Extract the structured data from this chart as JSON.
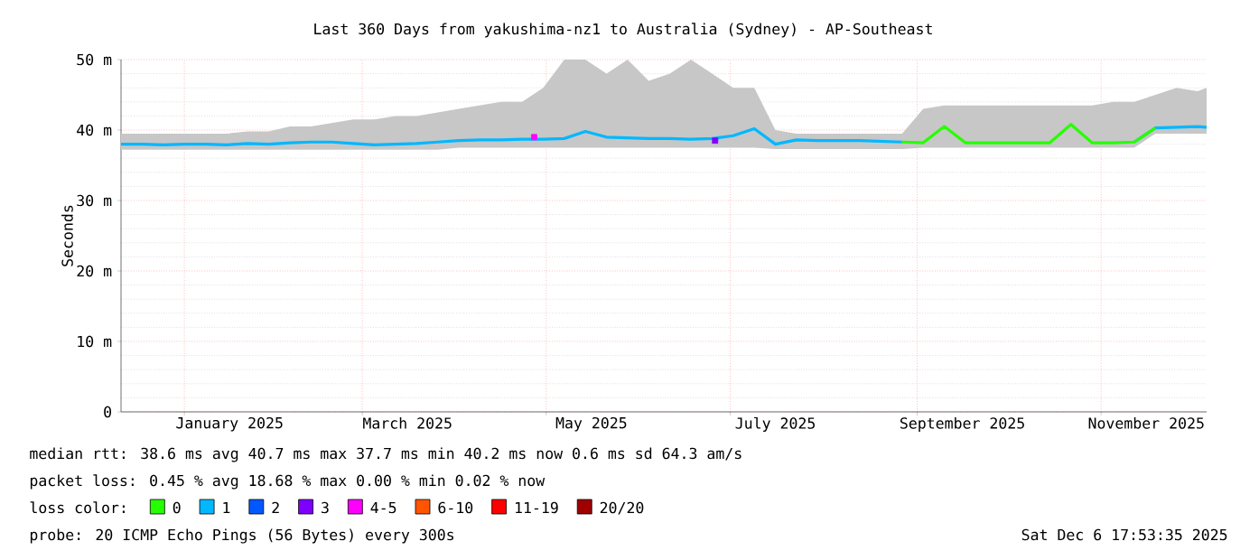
{
  "chart_data": {
    "type": "line",
    "title": "Last 360 Days from yakushima-nz1 to Australia (Sydney) - AP-Southeast",
    "ylabel": "Seconds",
    "legend_title": "loss color:",
    "legend": "bottom",
    "grid": true,
    "marker": "none",
    "line_style": "solid",
    "xlim": [
      "2024-12-11",
      "2025-12-06"
    ],
    "xticks": [
      {
        "value": "2025-01-01",
        "label": null
      },
      {
        "value": "2025-03-01",
        "label": null
      },
      {
        "value": "2025-05-01",
        "label": null
      },
      {
        "value": "2025-07-01",
        "label": null
      },
      {
        "value": "2025-09-01",
        "label": null
      },
      {
        "value": "2025-11-01",
        "label": null
      },
      {
        "value": "2025-01-16",
        "label": "January 2025"
      },
      {
        "value": "2025-03-16",
        "label": "March 2025"
      },
      {
        "value": "2025-05-16",
        "label": "May 2025"
      },
      {
        "value": "2025-07-16",
        "label": "July 2025"
      },
      {
        "value": "2025-09-16",
        "label": "September 2025"
      },
      {
        "value": "2025-11-16",
        "label": "November 2025"
      }
    ],
    "ylim": [
      0,
      50
    ],
    "yticks": [
      {
        "value": 0,
        "label": "0"
      },
      {
        "value": 10,
        "label": "10 m"
      },
      {
        "value": 20,
        "label": "20 m"
      },
      {
        "value": 30,
        "label": "30 m"
      },
      {
        "value": 40,
        "label": "40 m"
      },
      {
        "value": 50,
        "label": "50 m"
      }
    ],
    "series": [
      {
        "name": "0",
        "color": "#26ff00",
        "x": [
          "2025-08-27",
          "2025-09-03",
          "2025-09-10",
          "2025-09-17",
          "2025-09-24",
          "2025-10-01",
          "2025-10-08",
          "2025-10-15",
          "2025-10-22",
          "2025-10-29",
          "2025-11-05",
          "2025-11-12",
          "2025-11-19"
        ],
        "values": [
          38.3,
          38.2,
          40.5,
          38.2,
          38.2,
          38.2,
          38.2,
          38.2,
          40.8,
          38.2,
          38.2,
          38.3,
          40.3
        ]
      },
      {
        "name": "1",
        "color": "#00b8ff",
        "x": [
          "2024-12-11",
          "2024-12-18",
          "2024-12-25",
          "2025-01-01",
          "2025-01-08",
          "2025-01-15",
          "2025-01-22",
          "2025-01-29",
          "2025-02-05",
          "2025-02-12",
          "2025-02-19",
          "2025-02-26",
          "2025-03-05",
          "2025-03-12",
          "2025-03-19",
          "2025-03-26",
          "2025-04-02",
          "2025-04-09",
          "2025-04-16",
          "2025-04-23",
          "2025-04-30",
          "2025-05-07",
          "2025-05-14",
          "2025-05-21",
          "2025-05-28",
          "2025-06-04",
          "2025-06-11",
          "2025-06-18",
          "2025-06-25",
          "2025-07-02",
          "2025-07-09",
          "2025-07-16",
          "2025-07-23",
          "2025-07-30",
          "2025-08-06",
          "2025-08-13",
          "2025-08-20",
          "2025-08-27",
          "2025-09-03",
          "2025-09-10",
          "2025-09-17",
          "2025-09-24",
          "2025-10-01",
          "2025-10-08",
          "2025-10-15",
          "2025-10-22",
          "2025-10-29",
          "2025-11-05",
          "2025-11-12",
          "2025-11-19",
          "2025-11-26",
          "2025-12-03",
          "2025-12-06"
        ],
        "values": [
          38.0,
          38.0,
          37.9,
          38.0,
          38.0,
          37.9,
          38.1,
          38.0,
          38.2,
          38.3,
          38.3,
          38.1,
          37.9,
          38.0,
          38.1,
          38.3,
          38.5,
          38.6,
          38.6,
          38.7,
          38.7,
          38.8,
          39.8,
          39.0,
          38.9,
          38.8,
          38.8,
          38.7,
          38.8,
          39.2,
          40.2,
          38.0,
          38.6,
          38.5,
          38.5,
          38.5,
          38.4,
          38.3,
          null,
          null,
          null,
          null,
          null,
          null,
          null,
          null,
          null,
          null,
          38.3,
          40.3,
          40.4,
          40.5,
          40.4
        ],
        "lower": [
          37.2,
          37.2,
          37.2,
          37.2,
          37.2,
          37.2,
          37.2,
          37.2,
          37.2,
          37.2,
          37.2,
          37.2,
          37.2,
          37.2,
          37.2,
          37.2,
          37.5,
          37.5,
          37.5,
          37.5,
          37.5,
          37.5,
          37.5,
          37.5,
          37.5,
          37.5,
          37.5,
          37.5,
          37.5,
          37.5,
          37.5,
          37.3,
          37.3,
          37.3,
          37.3,
          37.3,
          37.3,
          37.3,
          37.5,
          37.5,
          37.5,
          37.5,
          37.5,
          37.5,
          37.5,
          37.5,
          37.5,
          37.5,
          37.5,
          39.5,
          39.5,
          39.5,
          39.5
        ],
        "upper": [
          39.5,
          39.5,
          39.5,
          39.5,
          39.5,
          39.5,
          39.8,
          39.8,
          40.5,
          40.5,
          41.0,
          41.5,
          41.5,
          42.0,
          42.0,
          42.5,
          43.0,
          43.5,
          44.0,
          44.0,
          46.0,
          50.0,
          50.0,
          48.0,
          50.0,
          47.0,
          48.0,
          50.0,
          48.0,
          46.0,
          46.0,
          40.0,
          39.5,
          39.5,
          39.5,
          39.5,
          39.5,
          39.5,
          43.0,
          43.5,
          43.5,
          43.5,
          43.5,
          43.5,
          43.5,
          43.5,
          43.5,
          44.0,
          44.0,
          45.0,
          46.0,
          45.5,
          46.0
        ]
      },
      {
        "name": "2",
        "color": "#0059ff"
      },
      {
        "name": "3",
        "color": "#7e00ff",
        "type": "scatter",
        "marker": "square",
        "x": [
          "2025-06-26"
        ],
        "values": [
          38.5
        ]
      },
      {
        "name": "4-5",
        "color": "#ff00ff",
        "type": "scatter",
        "marker": "square",
        "x": [
          "2025-04-27"
        ],
        "values": [
          39.0
        ]
      },
      {
        "name": "6-10",
        "color": "#ff5500"
      },
      {
        "name": "11-19",
        "color": "#ff0000"
      },
      {
        "name": "20/20",
        "color": "#a10000"
      }
    ],
    "annotations": [
      "median rtt:   38.6 ms avg   40.7 ms max   37.7 ms min   40.2 ms now   0.6 ms sd   64.3   am/s",
      "packet loss: 0.45 % avg   18.68 % max   0.00 % min   0.02 % now",
      "probe:       20 ICMP Echo Pings (56 Bytes) every 300s",
      "Sat Dec  6 17:53:35 2025"
    ]
  }
}
